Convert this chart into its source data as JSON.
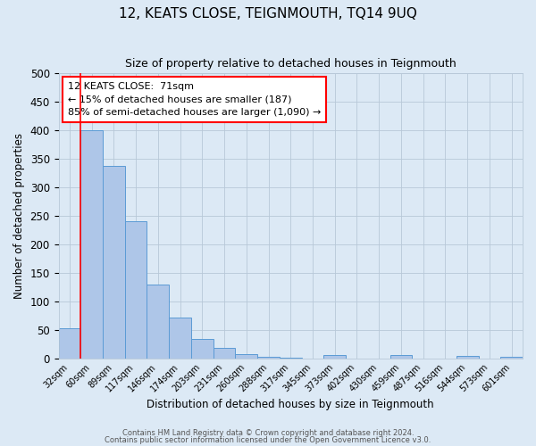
{
  "title": "12, KEATS CLOSE, TEIGNMOUTH, TQ14 9UQ",
  "subtitle": "Size of property relative to detached houses in Teignmouth",
  "xlabel": "Distribution of detached houses by size in Teignmouth",
  "ylabel": "Number of detached properties",
  "bar_labels": [
    "32sqm",
    "60sqm",
    "89sqm",
    "117sqm",
    "146sqm",
    "174sqm",
    "203sqm",
    "231sqm",
    "260sqm",
    "288sqm",
    "317sqm",
    "345sqm",
    "373sqm",
    "402sqm",
    "430sqm",
    "459sqm",
    "487sqm",
    "516sqm",
    "544sqm",
    "573sqm",
    "601sqm"
  ],
  "bar_values": [
    52,
    400,
    338,
    241,
    129,
    71,
    34,
    18,
    7,
    3,
    1,
    0,
    6,
    0,
    0,
    5,
    0,
    0,
    4,
    0,
    3
  ],
  "bar_color": "#aec6e8",
  "bar_edge_color": "#5b9bd5",
  "background_color": "#dce9f5",
  "red_line_x": 1.0,
  "annotation_title": "12 KEATS CLOSE:  71sqm",
  "annotation_line1": "← 15% of detached houses are smaller (187)",
  "annotation_line2": "85% of semi-detached houses are larger (1,090) →",
  "annotation_box_color": "white",
  "annotation_box_edge": "red",
  "ylim": [
    0,
    500
  ],
  "yticks": [
    0,
    50,
    100,
    150,
    200,
    250,
    300,
    350,
    400,
    450,
    500
  ],
  "footnote1": "Contains HM Land Registry data © Crown copyright and database right 2024.",
  "footnote2": "Contains public sector information licensed under the Open Government Licence v3.0."
}
